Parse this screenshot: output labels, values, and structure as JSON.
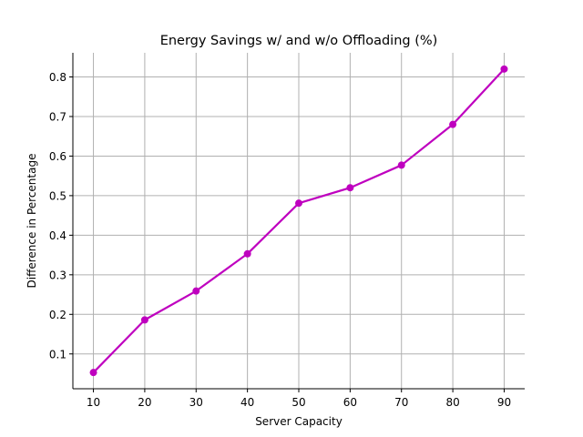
{
  "colors": {
    "series": "#bf00bf",
    "grid": "#b0b0b0"
  },
  "chart_data": {
    "type": "line",
    "title": "Energy Savings w/ and w/o Offloading (%)",
    "xlabel": "Server Capacity",
    "ylabel": "Difference in Percentage",
    "x": [
      10,
      20,
      30,
      40,
      50,
      60,
      70,
      80,
      90
    ],
    "series": [
      {
        "values": [
          0.053,
          0.186,
          0.259,
          0.353,
          0.481,
          0.52,
          0.577,
          0.68,
          0.82
        ],
        "marker": "circle"
      }
    ],
    "xlim": [
      6,
      94
    ],
    "ylim": [
      0.012,
      0.861
    ],
    "xticks": [
      10,
      20,
      30,
      40,
      50,
      60,
      70,
      80,
      90
    ],
    "yticks": [
      0.1,
      0.2,
      0.3,
      0.4,
      0.5,
      0.6,
      0.7,
      0.8
    ],
    "grid": true,
    "legend": "none"
  }
}
